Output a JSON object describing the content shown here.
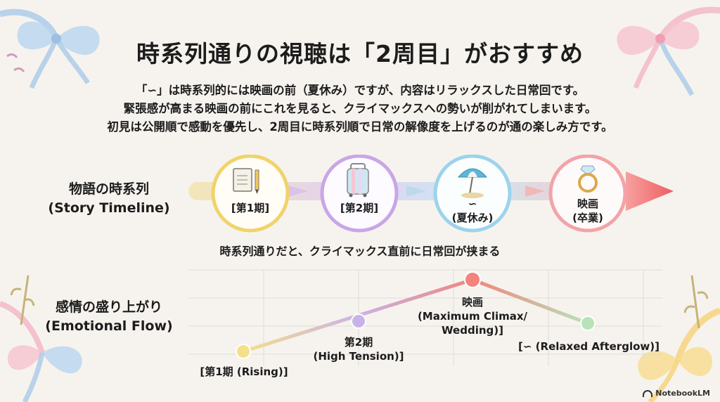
{
  "title": "時系列通りの視聴は「2周目」がおすすめ",
  "intro": [
    "「∽」は時系列的には映画の前（夏休み）ですが、内容はリラックスした日常回です。",
    "緊張感が高まる映画の前にこれを見ると、クライマックスへの勢いが削がれてしまいます。",
    "初見は公開順で感動を優先し、2周目に時系列順で日常の解像度を上げるのが通の楽しみ方です。"
  ],
  "story": {
    "label_jp": "物語の時系列",
    "label_en": "(Story Timeline)",
    "steps": [
      {
        "label": "[第1期]",
        "icon": "notebook-pencil-icon",
        "color": "#f0d36a"
      },
      {
        "label": "[第2期]",
        "icon": "suitcase-icon",
        "color": "#c9a6e6"
      },
      {
        "label_line1": "∽",
        "label_line2": "(夏休み)",
        "icon": "beach-umbrella-icon",
        "color": "#9dd3ec"
      },
      {
        "label_line1": "映画",
        "label_line2": "(卒業)",
        "icon": "ring-icon",
        "color": "#f2a4a8"
      }
    ],
    "caption": "時系列通りだと、クライマックス直前に日常回が挟まる"
  },
  "emotion": {
    "label_jp": "感情の盛り上がり",
    "label_en": "(Emotional Flow)",
    "points": [
      {
        "lines": [
          "[第1期 (Rising)]"
        ],
        "color": "#f5df8a"
      },
      {
        "lines": [
          "第2期",
          "(High Tension)]"
        ],
        "color": "#c9b3e6"
      },
      {
        "lines": [
          "映画",
          "(Maximum Climax/",
          "Wedding)]"
        ],
        "color": "#f1847e"
      },
      {
        "lines": [
          "[∽ (Relaxed Afterglow)]"
        ],
        "color": "#b7e3b7"
      }
    ]
  },
  "brand": "NotebookLM"
}
